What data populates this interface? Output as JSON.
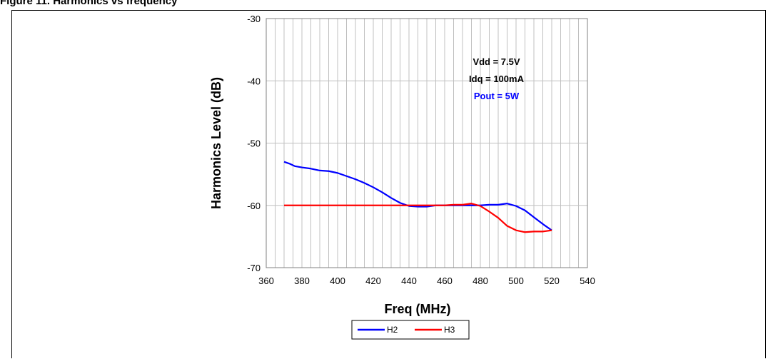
{
  "figure": {
    "heading": "Figure 11. Harmonics vs frequency"
  },
  "chart_data": {
    "type": "line",
    "title": "",
    "xlabel": "Freq (MHz)",
    "ylabel": "Harmonics Level (dB)",
    "xlim": [
      360,
      540
    ],
    "ylim": [
      -70,
      -30
    ],
    "x_ticks": [
      "360",
      "380",
      "400",
      "420",
      "440",
      "460",
      "480",
      "500",
      "520",
      "540"
    ],
    "y_ticks": [
      "-30",
      "-40",
      "-50",
      "-60",
      "-70"
    ],
    "grid": "vertical",
    "legend_position": "bottom-center",
    "annotations": [
      {
        "text": "Vdd = 7.5V",
        "color": "#000000"
      },
      {
        "text": "Idq = 100mA",
        "color": "#000000"
      },
      {
        "text": "Pout = 5W",
        "color": "#0000FF"
      }
    ],
    "series": [
      {
        "name": "H2",
        "color": "#0000FF",
        "x": [
          370,
          373,
          376,
          380,
          385,
          390,
          395,
          400,
          405,
          410,
          415,
          420,
          425,
          430,
          435,
          440,
          445,
          450,
          455,
          460,
          465,
          470,
          475,
          480,
          485,
          490,
          495,
          500,
          505,
          510,
          515,
          520
        ],
        "y": [
          -53.0,
          -53.3,
          -53.7,
          -53.9,
          -54.1,
          -54.4,
          -54.5,
          -54.8,
          -55.3,
          -55.8,
          -56.4,
          -57.1,
          -57.9,
          -58.8,
          -59.6,
          -60.1,
          -60.2,
          -60.2,
          -60.0,
          -60.0,
          -60.0,
          -60.0,
          -60.0,
          -60.0,
          -59.9,
          -59.9,
          -59.7,
          -60.1,
          -60.8,
          -61.9,
          -63.0,
          -64.0
        ]
      },
      {
        "name": "H3",
        "color": "#FF0000",
        "x": [
          370,
          380,
          400,
          420,
          440,
          460,
          465,
          470,
          475,
          480,
          485,
          490,
          495,
          500,
          505,
          510,
          515,
          520
        ],
        "y": [
          -60.0,
          -60.0,
          -60.0,
          -60.0,
          -60.0,
          -60.0,
          -59.9,
          -59.9,
          -59.7,
          -60.1,
          -61.0,
          -62.0,
          -63.3,
          -64.0,
          -64.3,
          -64.2,
          -64.2,
          -64.0
        ]
      }
    ]
  }
}
